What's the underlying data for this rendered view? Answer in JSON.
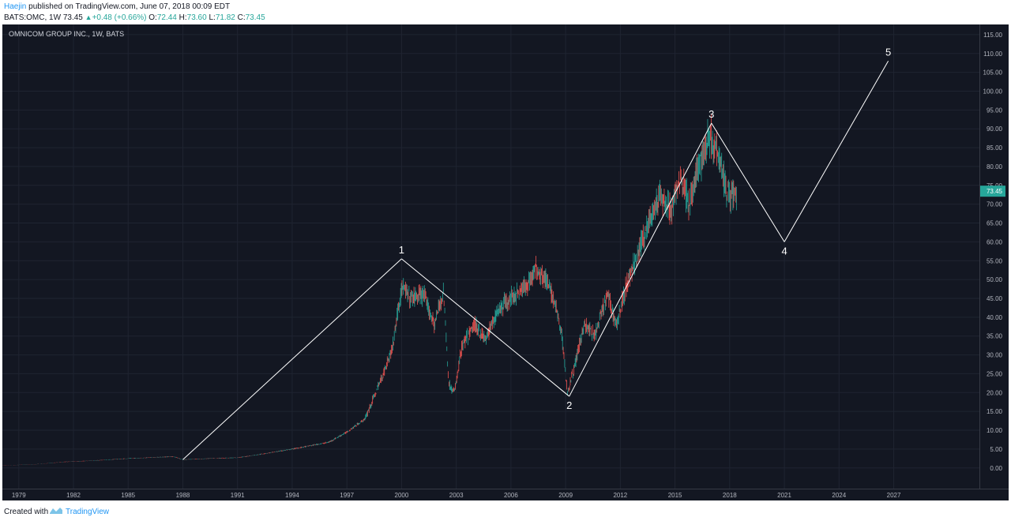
{
  "header": {
    "author": "Haejin",
    "published_text": "published on TradingView.com, June 07, 2018 00:09 EDT",
    "symbol": "BATS:OMC,",
    "interval": "1W",
    "last": "73.45",
    "change": "+0.48 (+0.66%)",
    "open_label": "O:",
    "open": "72.44",
    "high_label": "H:",
    "high": "73.60",
    "low_label": "L:",
    "low": "71.82",
    "close_label": "C:",
    "close": "73.45"
  },
  "chart_title": "OMNICOM GROUP INC., 1W, BATS",
  "footer": {
    "created_with": "Created with",
    "brand": "TradingView"
  },
  "colors": {
    "background": "#131722",
    "up": "#26a69a",
    "down": "#ef5350",
    "wave": "#ffffff",
    "grid": "#1f2431",
    "axis_text": "#b2b5be",
    "price_badge": "#26a69a"
  },
  "chart_data": {
    "type": "candlestick",
    "title": "OMNICOM GROUP INC., 1W, BATS",
    "xlim": [
      1978.1,
      2031.7
    ],
    "ylim": [
      -5.5,
      117.7
    ],
    "x_ticks": [
      "1979",
      "1982",
      "1985",
      "1988",
      "1991",
      "1994",
      "1997",
      "2000",
      "2003",
      "2006",
      "2009",
      "2012",
      "2015",
      "2018",
      "2021",
      "2024",
      "2027"
    ],
    "y_ticks": [
      "0.00",
      "5.00",
      "10.00",
      "15.00",
      "20.00",
      "25.00",
      "30.00",
      "35.00",
      "40.00",
      "45.00",
      "50.00",
      "55.00",
      "60.00",
      "65.00",
      "70.00",
      "75.00",
      "80.00",
      "85.00",
      "90.00",
      "95.00",
      "100.00",
      "105.00",
      "110.00",
      "115.00"
    ],
    "last_price": "73.45",
    "grid": true,
    "price_path": [
      [
        1978.1,
        0.6
      ],
      [
        1980,
        1.0
      ],
      [
        1981.5,
        1.6
      ],
      [
        1983,
        1.9
      ],
      [
        1985,
        2.5
      ],
      [
        1987.5,
        3.0
      ],
      [
        1988,
        2.2
      ],
      [
        1990,
        2.6
      ],
      [
        1991,
        2.7
      ],
      [
        1992.5,
        3.8
      ],
      [
        1994,
        5.0
      ],
      [
        1996,
        6.8
      ],
      [
        1997,
        9.5
      ],
      [
        1998,
        13
      ],
      [
        1999,
        25
      ],
      [
        1999.5,
        32
      ],
      [
        2000,
        48
      ],
      [
        2000.5,
        45
      ],
      [
        2001.2,
        46
      ],
      [
        2001.8,
        38
      ],
      [
        2002.3,
        47
      ],
      [
        2002.6,
        22
      ],
      [
        2002.9,
        20
      ],
      [
        2003.3,
        32
      ],
      [
        2004,
        38
      ],
      [
        2004.6,
        34
      ],
      [
        2005.3,
        42
      ],
      [
        2006,
        45
      ],
      [
        2006.8,
        48
      ],
      [
        2007.4,
        53
      ],
      [
        2007.9,
        50
      ],
      [
        2008.4,
        44
      ],
      [
        2008.8,
        35
      ],
      [
        2009.1,
        20
      ],
      [
        2009.5,
        27
      ],
      [
        2010,
        38
      ],
      [
        2010.6,
        35
      ],
      [
        2011.3,
        46
      ],
      [
        2011.8,
        38
      ],
      [
        2012.3,
        48
      ],
      [
        2013,
        57
      ],
      [
        2013.6,
        66
      ],
      [
        2014.2,
        72
      ],
      [
        2014.8,
        68
      ],
      [
        2015.3,
        78
      ],
      [
        2015.8,
        70
      ],
      [
        2016.3,
        80
      ],
      [
        2016.9,
        88
      ],
      [
        2017.4,
        84
      ],
      [
        2017.8,
        74
      ],
      [
        2018.2,
        72
      ],
      [
        2018.4,
        73.45
      ]
    ],
    "wave_points": [
      {
        "label": "",
        "x": 1988,
        "y": 2.2
      },
      {
        "label": "1",
        "x": 2000,
        "y": 55.5
      },
      {
        "label": "2",
        "x": 2009.2,
        "y": 19
      },
      {
        "label": "3",
        "x": 2017,
        "y": 91.5
      },
      {
        "label": "4",
        "x": 2021,
        "y": 60
      },
      {
        "label": "5",
        "x": 2026.7,
        "y": 108
      }
    ]
  }
}
